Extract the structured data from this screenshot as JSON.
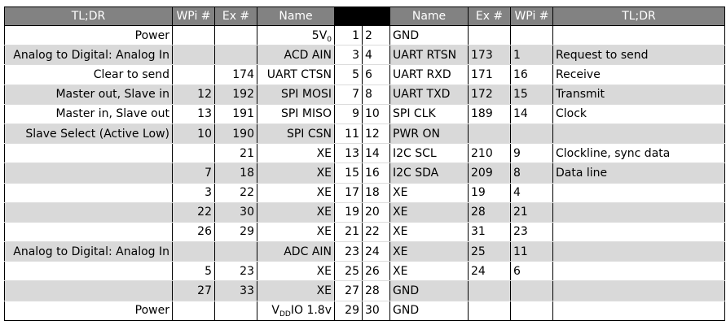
{
  "headers": {
    "left_tldr": "TL;DR",
    "left_wpi": "WPi #",
    "left_ex": "Ex #",
    "left_name": "Name",
    "right_name": "Name",
    "right_ex": "Ex #",
    "right_wpi": "WPi #",
    "right_tldr": "TL;DR"
  },
  "rows": [
    {
      "ltldr": "Power",
      "lwpi": "",
      "lex": "",
      "lname_main": "5V",
      "lname_sub": "0",
      "lname_tail": "",
      "lpin": "1",
      "rpin": "2",
      "rname": "GND",
      "rex": "",
      "rwpi": "",
      "rtldr": ""
    },
    {
      "ltldr": "Analog to Digital: Analog In",
      "lwpi": "",
      "lex": "",
      "lname_main": "ACD AIN",
      "lname_sub": "",
      "lname_tail": "",
      "lpin": "3",
      "rpin": "4",
      "rname": "UART RTSN",
      "rex": "173",
      "rwpi": "1",
      "rtldr": "Request to send"
    },
    {
      "ltldr": "Clear to send",
      "lwpi": "",
      "lex": "174",
      "lname_main": "UART CTSN",
      "lname_sub": "",
      "lname_tail": "",
      "lpin": "5",
      "rpin": "6",
      "rname": "UART RXD",
      "rex": "171",
      "rwpi": "16",
      "rtldr": "Receive"
    },
    {
      "ltldr": "Master out, Slave in",
      "lwpi": "12",
      "lex": "192",
      "lname_main": "SPI MOSI",
      "lname_sub": "",
      "lname_tail": "",
      "lpin": "7",
      "rpin": "8",
      "rname": "UART TXD",
      "rex": "172",
      "rwpi": "15",
      "rtldr": "Transmit"
    },
    {
      "ltldr": "Master in, Slave out",
      "lwpi": "13",
      "lex": "191",
      "lname_main": "SPI MISO",
      "lname_sub": "",
      "lname_tail": "",
      "lpin": "9",
      "rpin": "10",
      "rname": "SPI CLK",
      "rex": "189",
      "rwpi": "14",
      "rtldr": "Clock"
    },
    {
      "ltldr": "Slave Select (Active Low)",
      "lwpi": "10",
      "lex": "190",
      "lname_main": "SPI CSN",
      "lname_sub": "",
      "lname_tail": "",
      "lpin": "11",
      "rpin": "12",
      "rname": "PWR ON",
      "rex": "",
      "rwpi": "",
      "rtldr": ""
    },
    {
      "ltldr": "",
      "lwpi": "",
      "lex": "21",
      "lname_main": "XE",
      "lname_sub": "",
      "lname_tail": "",
      "lpin": "13",
      "rpin": "14",
      "rname": "I2C SCL",
      "rex": "210",
      "rwpi": "9",
      "rtldr": "Clockline, sync data"
    },
    {
      "ltldr": "",
      "lwpi": "7",
      "lex": "18",
      "lname_main": "XE",
      "lname_sub": "",
      "lname_tail": "",
      "lpin": "15",
      "rpin": "16",
      "rname": "I2C SDA",
      "rex": "209",
      "rwpi": "8",
      "rtldr": "Data line"
    },
    {
      "ltldr": "",
      "lwpi": "3",
      "lex": "22",
      "lname_main": "XE",
      "lname_sub": "",
      "lname_tail": "",
      "lpin": "17",
      "rpin": "18",
      "rname": "XE",
      "rex": "19",
      "rwpi": "4",
      "rtldr": ""
    },
    {
      "ltldr": "",
      "lwpi": "22",
      "lex": "30",
      "lname_main": "XE",
      "lname_sub": "",
      "lname_tail": "",
      "lpin": "19",
      "rpin": "20",
      "rname": "XE",
      "rex": "28",
      "rwpi": "21",
      "rtldr": ""
    },
    {
      "ltldr": "",
      "lwpi": "26",
      "lex": "29",
      "lname_main": "XE",
      "lname_sub": "",
      "lname_tail": "",
      "lpin": "21",
      "rpin": "22",
      "rname": "XE",
      "rex": "31",
      "rwpi": "23",
      "rtldr": ""
    },
    {
      "ltldr": "Analog to Digital: Analog In",
      "lwpi": "",
      "lex": "",
      "lname_main": "ADC AIN",
      "lname_sub": "",
      "lname_tail": "",
      "lpin": "23",
      "rpin": "24",
      "rname": "XE",
      "rex": "25",
      "rwpi": "11",
      "rtldr": ""
    },
    {
      "ltldr": "",
      "lwpi": "5",
      "lex": "23",
      "lname_main": "XE",
      "lname_sub": "",
      "lname_tail": "",
      "lpin": "25",
      "rpin": "26",
      "rname": "XE",
      "rex": "24",
      "rwpi": "6",
      "rtldr": ""
    },
    {
      "ltldr": "",
      "lwpi": "27",
      "lex": "33",
      "lname_main": "XE",
      "lname_sub": "",
      "lname_tail": "",
      "lpin": "27",
      "rpin": "28",
      "rname": "GND",
      "rex": "",
      "rwpi": "",
      "rtldr": ""
    },
    {
      "ltldr": "Power",
      "lwpi": "",
      "lex": "",
      "lname_main": "V",
      "lname_sub": "DD",
      "lname_tail": "IO 1.8v",
      "lpin": "29",
      "rpin": "30",
      "rname": "GND",
      "rex": "",
      "rwpi": "",
      "rtldr": ""
    }
  ],
  "colors": {
    "header_bg": "#828282",
    "header_text": "#ffffff",
    "pin_header_bg": "#000000",
    "stripe_bg": "#d9d9d9"
  }
}
